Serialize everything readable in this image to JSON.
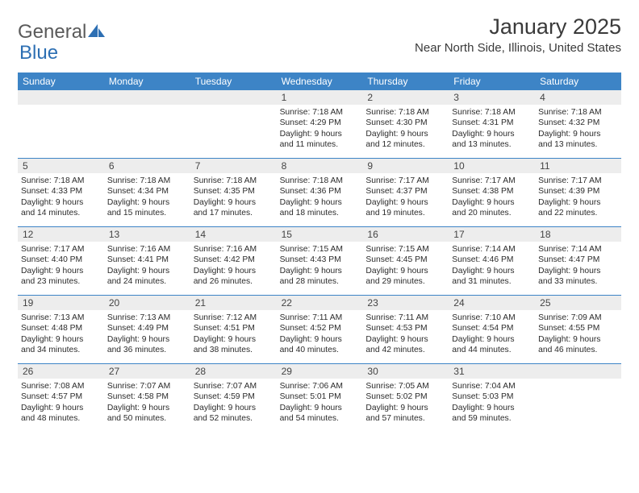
{
  "logo": {
    "part1": "General",
    "part2": "Blue"
  },
  "title": "January 2025",
  "location": "Near North Side, Illinois, United States",
  "colors": {
    "header_bg": "#3d84c6",
    "header_text": "#ffffff",
    "daynum_bg": "#ededed",
    "text": "#2b2b2b",
    "rule": "#3d84c6"
  },
  "dayHeaders": [
    "Sunday",
    "Monday",
    "Tuesday",
    "Wednesday",
    "Thursday",
    "Friday",
    "Saturday"
  ],
  "weeks": [
    [
      {
        "n": "",
        "empty": true
      },
      {
        "n": "",
        "empty": true
      },
      {
        "n": "",
        "empty": true
      },
      {
        "n": "1",
        "sunrise": "7:18 AM",
        "sunset": "4:29 PM",
        "day_h": 9,
        "day_m": 11
      },
      {
        "n": "2",
        "sunrise": "7:18 AM",
        "sunset": "4:30 PM",
        "day_h": 9,
        "day_m": 12
      },
      {
        "n": "3",
        "sunrise": "7:18 AM",
        "sunset": "4:31 PM",
        "day_h": 9,
        "day_m": 13
      },
      {
        "n": "4",
        "sunrise": "7:18 AM",
        "sunset": "4:32 PM",
        "day_h": 9,
        "day_m": 13
      }
    ],
    [
      {
        "n": "5",
        "sunrise": "7:18 AM",
        "sunset": "4:33 PM",
        "day_h": 9,
        "day_m": 14
      },
      {
        "n": "6",
        "sunrise": "7:18 AM",
        "sunset": "4:34 PM",
        "day_h": 9,
        "day_m": 15
      },
      {
        "n": "7",
        "sunrise": "7:18 AM",
        "sunset": "4:35 PM",
        "day_h": 9,
        "day_m": 17
      },
      {
        "n": "8",
        "sunrise": "7:18 AM",
        "sunset": "4:36 PM",
        "day_h": 9,
        "day_m": 18
      },
      {
        "n": "9",
        "sunrise": "7:17 AM",
        "sunset": "4:37 PM",
        "day_h": 9,
        "day_m": 19
      },
      {
        "n": "10",
        "sunrise": "7:17 AM",
        "sunset": "4:38 PM",
        "day_h": 9,
        "day_m": 20
      },
      {
        "n": "11",
        "sunrise": "7:17 AM",
        "sunset": "4:39 PM",
        "day_h": 9,
        "day_m": 22
      }
    ],
    [
      {
        "n": "12",
        "sunrise": "7:17 AM",
        "sunset": "4:40 PM",
        "day_h": 9,
        "day_m": 23
      },
      {
        "n": "13",
        "sunrise": "7:16 AM",
        "sunset": "4:41 PM",
        "day_h": 9,
        "day_m": 24
      },
      {
        "n": "14",
        "sunrise": "7:16 AM",
        "sunset": "4:42 PM",
        "day_h": 9,
        "day_m": 26
      },
      {
        "n": "15",
        "sunrise": "7:15 AM",
        "sunset": "4:43 PM",
        "day_h": 9,
        "day_m": 28
      },
      {
        "n": "16",
        "sunrise": "7:15 AM",
        "sunset": "4:45 PM",
        "day_h": 9,
        "day_m": 29
      },
      {
        "n": "17",
        "sunrise": "7:14 AM",
        "sunset": "4:46 PM",
        "day_h": 9,
        "day_m": 31
      },
      {
        "n": "18",
        "sunrise": "7:14 AM",
        "sunset": "4:47 PM",
        "day_h": 9,
        "day_m": 33
      }
    ],
    [
      {
        "n": "19",
        "sunrise": "7:13 AM",
        "sunset": "4:48 PM",
        "day_h": 9,
        "day_m": 34
      },
      {
        "n": "20",
        "sunrise": "7:13 AM",
        "sunset": "4:49 PM",
        "day_h": 9,
        "day_m": 36
      },
      {
        "n": "21",
        "sunrise": "7:12 AM",
        "sunset": "4:51 PM",
        "day_h": 9,
        "day_m": 38
      },
      {
        "n": "22",
        "sunrise": "7:11 AM",
        "sunset": "4:52 PM",
        "day_h": 9,
        "day_m": 40
      },
      {
        "n": "23",
        "sunrise": "7:11 AM",
        "sunset": "4:53 PM",
        "day_h": 9,
        "day_m": 42
      },
      {
        "n": "24",
        "sunrise": "7:10 AM",
        "sunset": "4:54 PM",
        "day_h": 9,
        "day_m": 44
      },
      {
        "n": "25",
        "sunrise": "7:09 AM",
        "sunset": "4:55 PM",
        "day_h": 9,
        "day_m": 46
      }
    ],
    [
      {
        "n": "26",
        "sunrise": "7:08 AM",
        "sunset": "4:57 PM",
        "day_h": 9,
        "day_m": 48
      },
      {
        "n": "27",
        "sunrise": "7:07 AM",
        "sunset": "4:58 PM",
        "day_h": 9,
        "day_m": 50
      },
      {
        "n": "28",
        "sunrise": "7:07 AM",
        "sunset": "4:59 PM",
        "day_h": 9,
        "day_m": 52
      },
      {
        "n": "29",
        "sunrise": "7:06 AM",
        "sunset": "5:01 PM",
        "day_h": 9,
        "day_m": 54
      },
      {
        "n": "30",
        "sunrise": "7:05 AM",
        "sunset": "5:02 PM",
        "day_h": 9,
        "day_m": 57
      },
      {
        "n": "31",
        "sunrise": "7:04 AM",
        "sunset": "5:03 PM",
        "day_h": 9,
        "day_m": 59
      },
      {
        "n": "",
        "empty": true
      }
    ]
  ],
  "labels": {
    "sunrise": "Sunrise:",
    "sunset": "Sunset:",
    "daylight": "Daylight:",
    "hours": "hours",
    "and": "and",
    "minutes": "minutes."
  }
}
